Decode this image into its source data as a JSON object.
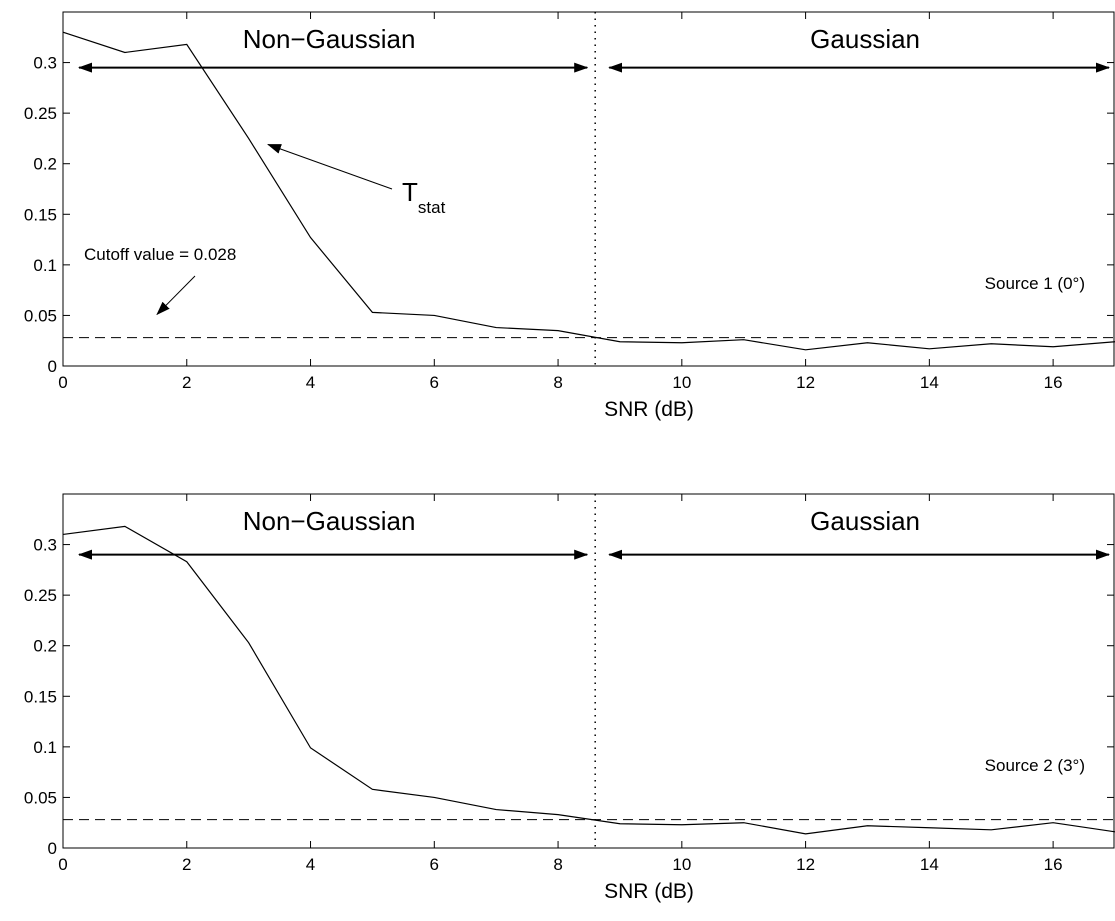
{
  "chart_data": [
    {
      "type": "line",
      "xlabel": "SNR (dB)",
      "ylabel": "",
      "xlim": [
        0,
        17
      ],
      "ylim": [
        0,
        0.35
      ],
      "xticks": [
        0,
        2,
        4,
        6,
        8,
        10,
        12,
        14,
        16
      ],
      "yticks": [
        0,
        0.05,
        0.1,
        0.15,
        0.2,
        0.25,
        0.3
      ],
      "ytick_labels": [
        "0",
        "0.05",
        "0.1",
        "0.15",
        "0.2",
        "0.25",
        "0.3"
      ],
      "grid": false,
      "series": [
        {
          "x": [
            0,
            1,
            2,
            3,
            4,
            5,
            6,
            7,
            8,
            9,
            10,
            11,
            12,
            13,
            14,
            15,
            16,
            17
          ],
          "values": [
            0.33,
            0.31,
            0.318,
            0.225,
            0.127,
            0.053,
            0.05,
            0.038,
            0.035,
            0.024,
            0.023,
            0.026,
            0.016,
            0.023,
            0.017,
            0.022,
            0.019,
            0.024
          ]
        }
      ],
      "cutoff": 0.028,
      "boundary_x": 8.6,
      "arrow_y": 0.295,
      "region_labels": [
        "Non−Gaussian",
        "Gaussian"
      ],
      "source_label": "Source 1 (0°)",
      "cutoff_annotation": "Cutoff value = 0.028",
      "tstat_label": {
        "main": "T",
        "sub": "stat"
      }
    },
    {
      "type": "line",
      "xlabel": "SNR (dB)",
      "ylabel": "",
      "xlim": [
        0,
        17
      ],
      "ylim": [
        0,
        0.35
      ],
      "xticks": [
        0,
        2,
        4,
        6,
        8,
        10,
        12,
        14,
        16
      ],
      "yticks": [
        0,
        0.05,
        0.1,
        0.15,
        0.2,
        0.25,
        0.3
      ],
      "ytick_labels": [
        "0",
        "0.05",
        "0.1",
        "0.15",
        "0.2",
        "0.25",
        "0.3"
      ],
      "grid": false,
      "series": [
        {
          "x": [
            0,
            1,
            2,
            3,
            4,
            5,
            6,
            7,
            8,
            9,
            10,
            11,
            12,
            13,
            14,
            15,
            16,
            17
          ],
          "values": [
            0.31,
            0.318,
            0.283,
            0.203,
            0.099,
            0.058,
            0.05,
            0.038,
            0.033,
            0.024,
            0.023,
            0.025,
            0.014,
            0.022,
            0.02,
            0.018,
            0.025,
            0.016
          ]
        }
      ],
      "cutoff": 0.028,
      "boundary_x": 8.6,
      "arrow_y": 0.29,
      "region_labels": [
        "Non−Gaussian",
        "Gaussian"
      ],
      "source_label": "Source 2 (3°)"
    }
  ]
}
